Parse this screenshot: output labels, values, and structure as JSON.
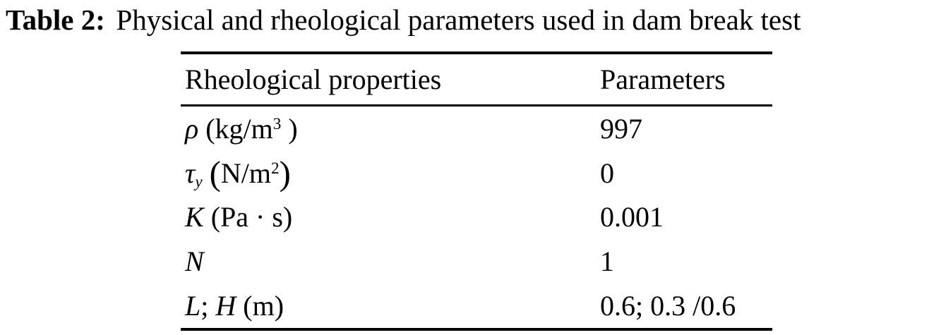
{
  "page": {
    "background": "#ffffff",
    "text_color": "#000000"
  },
  "caption": {
    "segments": [
      {
        "t": "Table 2:",
        "s": "b"
      },
      {
        "t": "Physical and rheological parameters used in dam break test"
      }
    ],
    "plain_text": "Table 2: Physical and rheological parameters used in dam break test"
  },
  "table": {
    "headers": {
      "property": "Rheological properties",
      "value": "Parameters"
    },
    "rows": [
      {
        "property": [
          {
            "t": "ρ",
            "s": "i"
          },
          {
            "t": " (kg/m"
          },
          {
            "t": "3",
            "s": "sup"
          },
          {
            "t": " )"
          }
        ],
        "property_text": "ρ (kg/m³ )",
        "value": "997"
      },
      {
        "property": [
          {
            "t": "τ",
            "s": "i"
          },
          {
            "t": "y",
            "s": "i sub"
          },
          {
            "t": " "
          },
          {
            "t": "(",
            "s": "big"
          },
          {
            "t": "N/m"
          },
          {
            "t": "2",
            "s": "sup"
          },
          {
            "t": ")",
            "s": "big"
          }
        ],
        "property_text": "τy (N/m²)",
        "value": "0"
      },
      {
        "property": [
          {
            "t": "K",
            "s": "i"
          },
          {
            "t": " (Pa · s)"
          }
        ],
        "property_text": "K (Pa · s)",
        "value": "0.001"
      },
      {
        "property": [
          {
            "t": "N",
            "s": "i"
          }
        ],
        "property_text": "N",
        "value": "1"
      },
      {
        "property": [
          {
            "t": "L",
            "s": "i"
          },
          {
            "t": "; "
          },
          {
            "t": "H",
            "s": "i"
          },
          {
            "t": " (m)"
          }
        ],
        "property_text": "L; H (m)",
        "value": "0.6; 0.3 /0.6"
      }
    ]
  }
}
